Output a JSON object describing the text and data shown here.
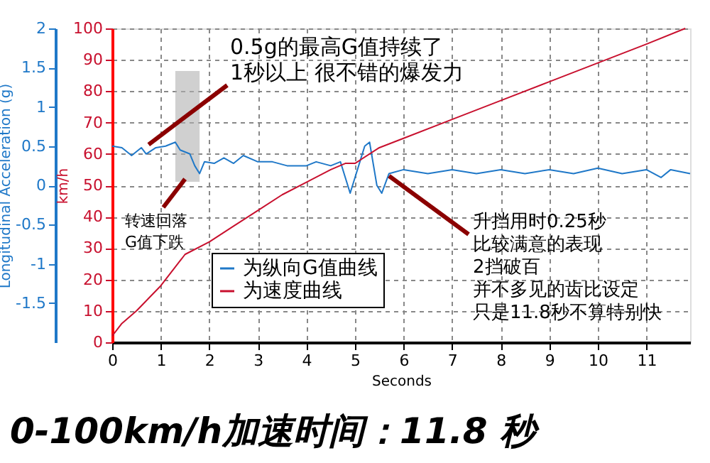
{
  "chart_data": {
    "type": "line",
    "title": "0-100km/h加速时间：11.8 秒",
    "xlabel": "Seconds",
    "ylabel": "km/h",
    "y2label": "Longitudinal Acceleration (g)",
    "xlim": [
      0,
      11.9
    ],
    "xticks": [
      0,
      1,
      2,
      3,
      4,
      5,
      6,
      7,
      8,
      9,
      10,
      11
    ],
    "ylim": [
      0,
      100
    ],
    "yticks": [
      0,
      10,
      20,
      30,
      40,
      50,
      60,
      70,
      80,
      90,
      100
    ],
    "y2lim": [
      -2,
      2
    ],
    "y2ticks": [
      -1.5,
      -1,
      -0.5,
      0,
      0.5,
      1,
      1.5,
      2
    ],
    "grid": true,
    "legend": "bottom left",
    "line_style": "solid",
    "series": [
      {
        "name": "为纵向G值曲线",
        "color": "#1f78c8",
        "axis": "y2",
        "x": [
          0,
          0.2,
          0.4,
          0.6,
          0.7,
          0.9,
          1.1,
          1.3,
          1.4,
          1.6,
          1.7,
          1.8,
          1.9,
          2.1,
          2.3,
          2.5,
          2.7,
          3,
          3.3,
          3.6,
          4,
          4.2,
          4.5,
          4.7,
          4.8,
          4.9,
          5.1,
          5.2,
          5.3,
          5.45,
          5.55,
          5.7,
          6,
          6.5,
          7,
          7.5,
          8,
          8.5,
          9,
          9.5,
          10,
          10.5,
          11,
          11.3,
          11.5,
          11.9
        ],
        "values": [
          0.5,
          0.48,
          0.38,
          0.48,
          0.4,
          0.48,
          0.5,
          0.55,
          0.45,
          0.4,
          0.25,
          0.15,
          0.3,
          0.28,
          0.35,
          0.28,
          0.38,
          0.3,
          0.3,
          0.25,
          0.25,
          0.3,
          0.25,
          0.3,
          0.1,
          -0.1,
          0.3,
          0.5,
          0.55,
          0.0,
          -0.1,
          0.15,
          0.2,
          0.15,
          0.2,
          0.15,
          0.2,
          0.15,
          0.2,
          0.15,
          0.22,
          0.15,
          0.2,
          0.1,
          0.2,
          0.15
        ]
      },
      {
        "name": "为速度曲线",
        "color": "#c8102e",
        "x": [
          0,
          0.2,
          0.5,
          1,
          1.3,
          1.5,
          2,
          2.5,
          3,
          3.5,
          4,
          4.5,
          4.8,
          5,
          5.5,
          6,
          7,
          8,
          9,
          10,
          11,
          11.8
        ],
        "values": [
          2,
          6,
          10,
          18,
          24,
          28,
          32,
          37,
          42,
          47,
          51,
          55,
          57,
          57,
          62,
          65,
          71,
          77,
          83,
          89,
          95,
          100
        ]
      }
    ],
    "bands": [
      {
        "axis": "x",
        "from": 1.3,
        "to": 1.8,
        "color": "#b0b0b0"
      }
    ],
    "annotations": [
      {
        "text": "0.5g的最高G值持续了",
        "x": 0.75,
        "y": 63
      },
      "1秒以上 很不错的爆发力",
      {
        "text": "转速回落",
        "x": 1.5,
        "y": 52
      },
      "G值下跌",
      {
        "text": "升挡用时0.25秒",
        "x": 5.7,
        "y": 53
      },
      "比较满意的表现",
      "2挡破百",
      "并不多见的齿比设定",
      "只是11.8秒不算特别快"
    ]
  }
}
